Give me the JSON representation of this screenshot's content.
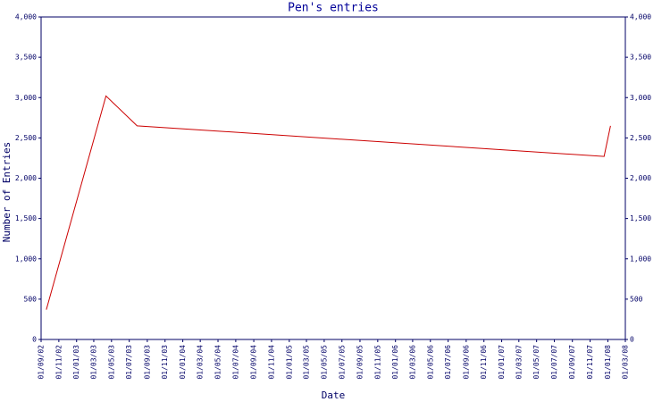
{
  "chart_data": {
    "type": "line",
    "title": "Pen's entries",
    "x_label": "Date",
    "y_label": "Number of Entries",
    "x": [
      "19/09/02",
      "12/04/03",
      "28/07/03",
      "19/12/07",
      "10/01/08"
    ],
    "series": [
      {
        "name": "Pen",
        "color": "#cc0000",
        "values": [
          370,
          3020,
          2650,
          2270,
          2650
        ]
      }
    ],
    "xlim": [
      "01/09/02",
      "01/03/08"
    ],
    "xticks": [
      "01/09/02",
      "01/11/02",
      "01/01/03",
      "01/03/03",
      "01/05/03",
      "01/07/03",
      "01/09/03",
      "01/11/03",
      "01/01/04",
      "01/03/04",
      "01/05/04",
      "01/07/04",
      "01/09/04",
      "01/11/04",
      "01/01/05",
      "01/03/05",
      "01/05/05",
      "01/07/05",
      "01/09/05",
      "01/11/05",
      "01/01/06",
      "01/03/06",
      "01/05/06",
      "01/07/06",
      "01/09/06",
      "01/11/06",
      "01/01/07",
      "01/03/07",
      "01/05/07",
      "01/07/07",
      "01/09/07",
      "01/11/07",
      "01/01/08",
      "01/03/08"
    ],
    "ylim": [
      0,
      4000
    ],
    "yticks": [
      0,
      500,
      {
        "value": 1000,
        "label": "1,000"
      },
      {
        "value": 1500,
        "label": "1,500"
      },
      {
        "value": 2000,
        "label": "2,000"
      },
      {
        "value": 2500,
        "label": "2,500"
      },
      {
        "value": 3000,
        "label": "3,000"
      },
      {
        "value": 3500,
        "label": "3,500"
      },
      {
        "value": 4000,
        "label": "4,000"
      }
    ],
    "right_axis": true
  }
}
